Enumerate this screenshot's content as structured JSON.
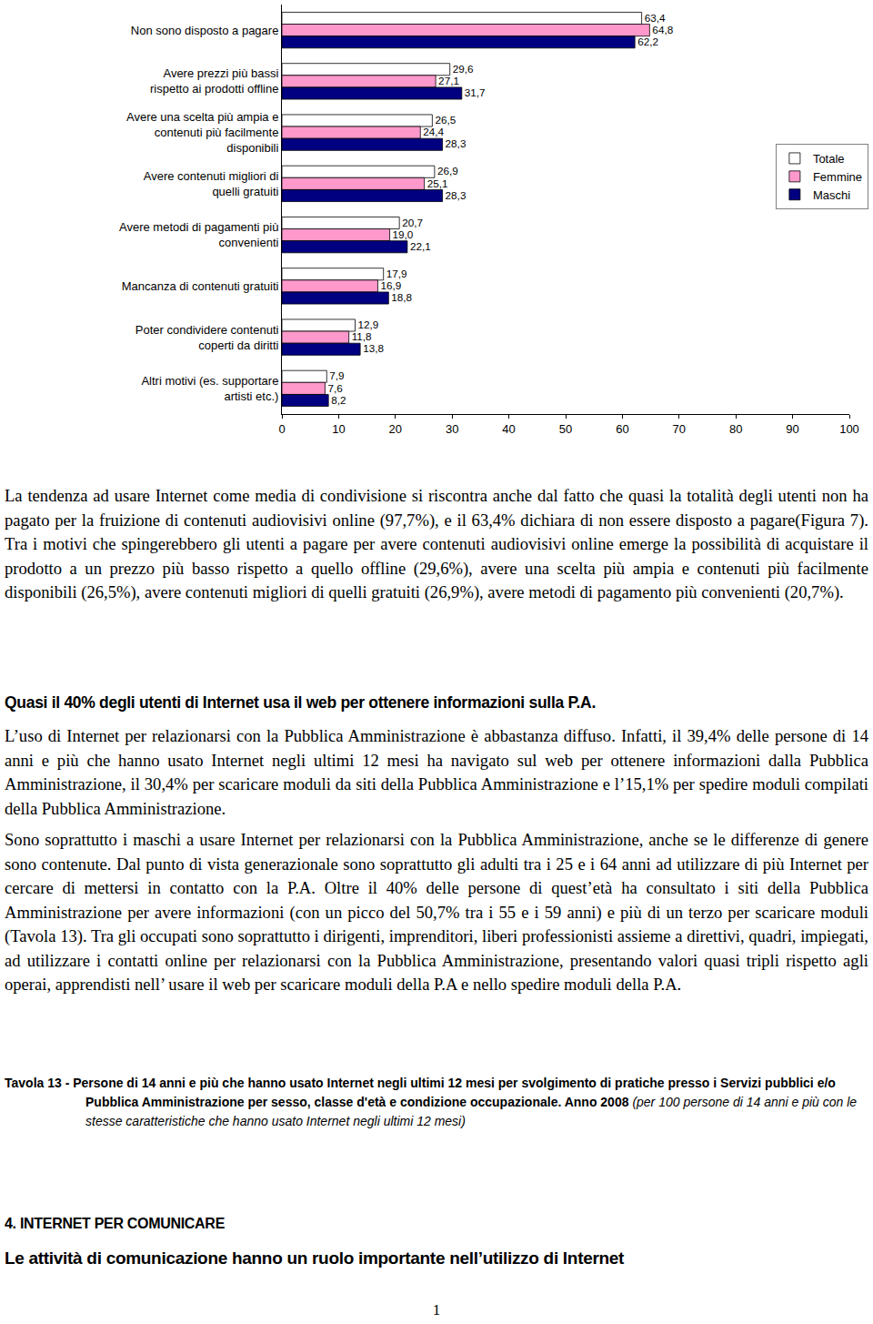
{
  "chart_data": {
    "type": "bar",
    "orientation": "horizontal",
    "categories": [
      "Non sono disposto a pagare",
      "Avere prezzi più bassi rispetto ai prodotti offline",
      "Avere una scelta più ampia e contenuti più facilmente disponibili",
      "Avere contenuti migliori di quelli gratuiti",
      "Avere metodi di pagamenti più convenienti",
      "Mancanza di contenuti gratuiti",
      "Poter condividere contenuti coperti da diritti",
      "Altri motivi (es. supportare artisti etc.)"
    ],
    "series": [
      {
        "name": "Totale",
        "color": "#ffffff",
        "values": [
          63.4,
          29.6,
          26.5,
          26.9,
          20.7,
          17.9,
          12.9,
          7.9
        ],
        "value_labels": [
          "63,4",
          "29,6",
          "26,5",
          "26,9",
          "20,7",
          "17,9",
          "12,9",
          "7,9"
        ]
      },
      {
        "name": "Femmine",
        "color": "#ff99cc",
        "values": [
          64.8,
          27.1,
          24.4,
          25.1,
          19.0,
          16.9,
          11.8,
          7.6
        ],
        "value_labels": [
          "64,8",
          "27,1",
          "24,4",
          "25,1",
          "19,0",
          "16,9",
          "11,8",
          "7,6"
        ]
      },
      {
        "name": "Maschi",
        "color": "#000080",
        "values": [
          62.2,
          31.7,
          28.3,
          28.3,
          22.1,
          18.8,
          13.8,
          8.2
        ],
        "value_labels": [
          "62,2",
          "31,7",
          "28,3",
          "28,3",
          "22,1",
          "18,8",
          "13,8",
          "8,2"
        ]
      }
    ],
    "xlim": [
      0,
      100
    ],
    "xticks": [
      0,
      10,
      20,
      30,
      40,
      50,
      60,
      70,
      80,
      90,
      100
    ],
    "grid": false,
    "legend": "right",
    "data_labels": true
  },
  "document": {
    "paragraphs_1": [
      "La tendenza ad usare Internet come media di condivisione si riscontra anche dal fatto che quasi la totalità degli utenti non ha pagato per la fruizione di contenuti audiovisivi online (97,7%), e il 63,4% dichiara di non essere disposto a pagare(Figura 7). Tra i motivi che spingerebbero gli utenti a pagare per avere contenuti audiovisivi online emerge la possibilità di acquistare il prodotto a un prezzo più basso rispetto a quello offline (29,6%), avere una scelta più ampia e contenuti più facilmente disponibili (26,5%), avere contenuti migliori di quelli gratuiti (26,9%), avere metodi di pagamento più convenienti (20,7%)."
    ],
    "heading_1": "Quasi il 40% degli utenti di Internet usa il web per ottenere informazioni sulla P.A.",
    "paragraphs_2": [
      "L’uso di Internet per relazionarsi con la Pubblica Amministrazione è abbastanza diffuso. Infatti, il 39,4% delle persone di 14 anni e più che hanno usato Internet negli ultimi 12 mesi ha navigato sul web per ottenere informazioni dalla Pubblica Amministrazione, il 30,4% per scaricare moduli da siti della Pubblica Amministrazione e l’15,1% per spedire moduli compilati della Pubblica Amministrazione.",
      "Sono soprattutto i maschi a usare Internet per relazionarsi con la Pubblica Amministrazione, anche se le differenze di genere sono contenute. Dal punto di vista generazionale sono soprattutto gli adulti tra i 25 e i 64 anni ad utilizzare di più Internet per cercare di mettersi in contatto con la P.A. Oltre il 40% delle persone di quest’età ha consultato i siti della Pubblica Amministrazione per avere informazioni (con un picco del 50,7% tra i 55 e i 59 anni) e più di un terzo per scaricare moduli (Tavola 13). Tra gli occupati sono soprattutto i dirigenti, imprenditori, liberi professionisti assieme a direttivi, quadri, impiegati, ad utilizzare i contatti online per relazionarsi con la Pubblica Amministrazione, presentando valori quasi tripli rispetto agli operai, apprendisti nell’ usare il web per scaricare moduli della P.A e nello spedire moduli della P.A."
    ],
    "caption": {
      "label": "Tavola 13 -",
      "title": "Persone di 14 anni e più che hanno usato Internet negli ultimi 12 mesi per svolgimento di pratiche presso i Servizi pubblici e/o Pubblica Amministrazione per sesso, classe d'età e condizione occupazionale. Anno 2008",
      "note": "(per 100 persone di 14 anni e più con le stesse caratteristiche che hanno usato Internet negli ultimi 12 mesi)"
    },
    "section": "4. INTERNET PER COMUNICARE",
    "heading_2": "Le attività di comunicazione hanno un ruolo importante nell’utilizzo di Internet",
    "page_number": "1"
  }
}
